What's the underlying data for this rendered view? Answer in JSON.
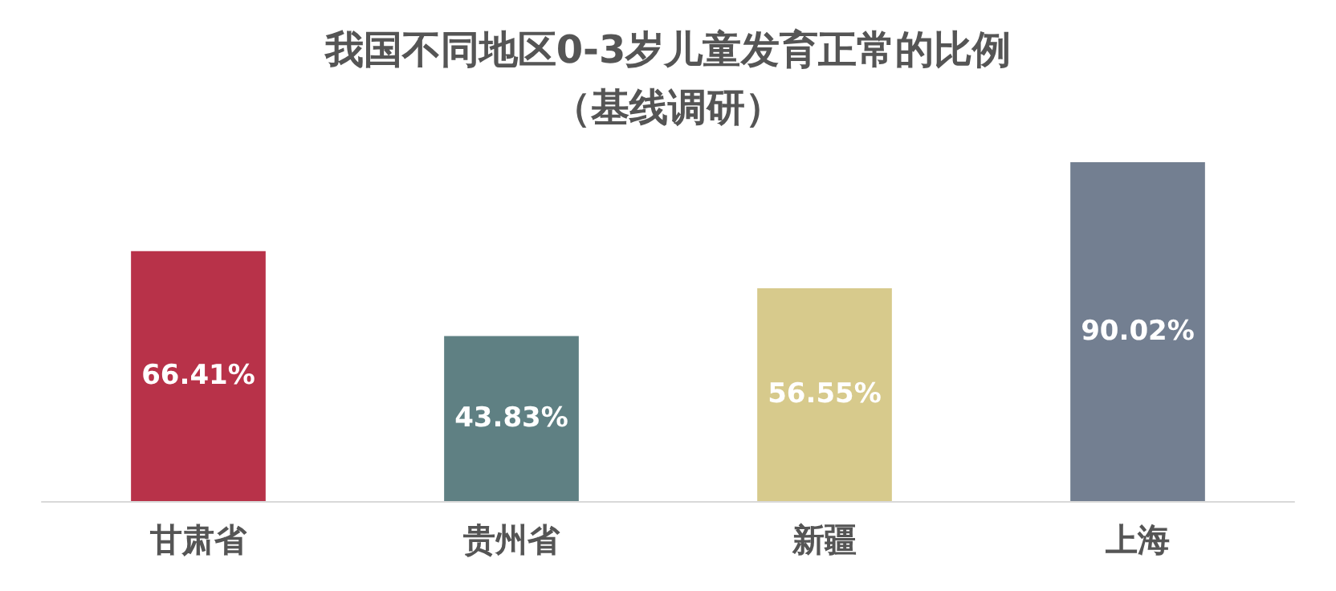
{
  "chart_data": {
    "type": "bar",
    "title": "我国不同地区0-3岁儿童发育正常的比例",
    "subtitle": "（基线调研）",
    "categories": [
      "甘肃省",
      "贵州省",
      "新疆",
      "上海"
    ],
    "values": [
      66.41,
      43.83,
      56.55,
      90.02
    ],
    "colors": [
      "#b83249",
      "#5f8083",
      "#d7ca8c",
      "#737f91"
    ],
    "value_labels": [
      "66.41%",
      "43.83%",
      "56.55%",
      "90.02%"
    ]
  }
}
